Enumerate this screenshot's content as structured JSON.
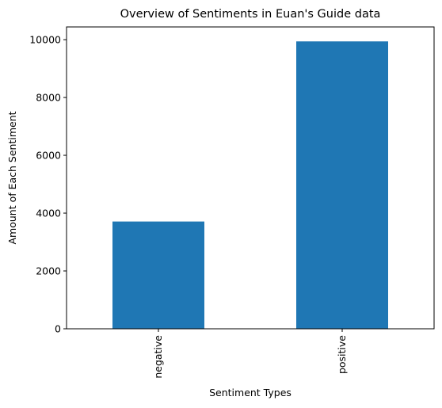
{
  "chart_data": {
    "type": "bar",
    "title": "Overview of Sentiments in Euan's Guide data",
    "xlabel": "Sentiment Types",
    "ylabel": "Amount of Each Sentiment",
    "categories": [
      "negative",
      "positive"
    ],
    "values": [
      3710,
      9940
    ],
    "ylim": [
      0,
      10440
    ],
    "yticks": [
      0,
      2000,
      4000,
      6000,
      8000,
      10000
    ],
    "grid": false,
    "legend": "none",
    "bar_color": "#1f77b4",
    "x_tick_rotation": "vertical"
  }
}
